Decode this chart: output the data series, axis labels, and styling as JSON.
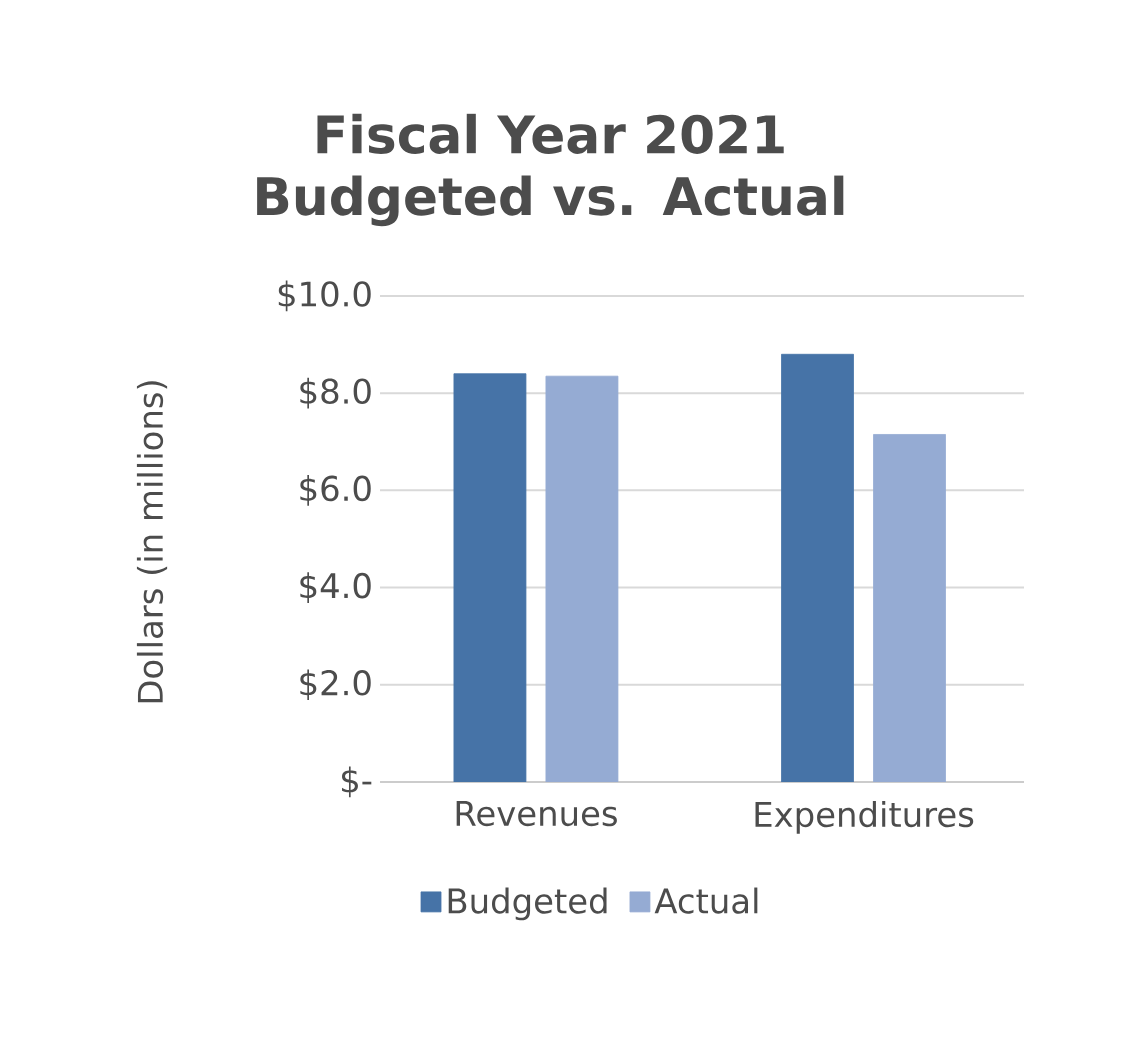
{
  "chart_data": {
    "type": "bar",
    "title": "Fiscal Year 2021\nBudgeted vs. Actual",
    "ylabel": "Dollars (in millions)",
    "categories": [
      "Revenues",
      "Expenditures"
    ],
    "series": [
      {
        "name": "Budgeted",
        "color": "#4673a7",
        "values": [
          8.4,
          8.8
        ]
      },
      {
        "name": "Actual",
        "color": "#95abd3",
        "values": [
          8.35,
          7.15
        ]
      }
    ],
    "ylim": [
      0,
      10
    ],
    "yticks": [
      {
        "value": 0,
        "label": "$-"
      },
      {
        "value": 2,
        "label": "$2.0"
      },
      {
        "value": 4,
        "label": "$4.0"
      },
      {
        "value": 6,
        "label": "$6.0"
      },
      {
        "value": 8,
        "label": "$8.0"
      },
      {
        "value": 10,
        "label": "$10.0"
      }
    ],
    "grid": "y",
    "legend": "bottom"
  }
}
